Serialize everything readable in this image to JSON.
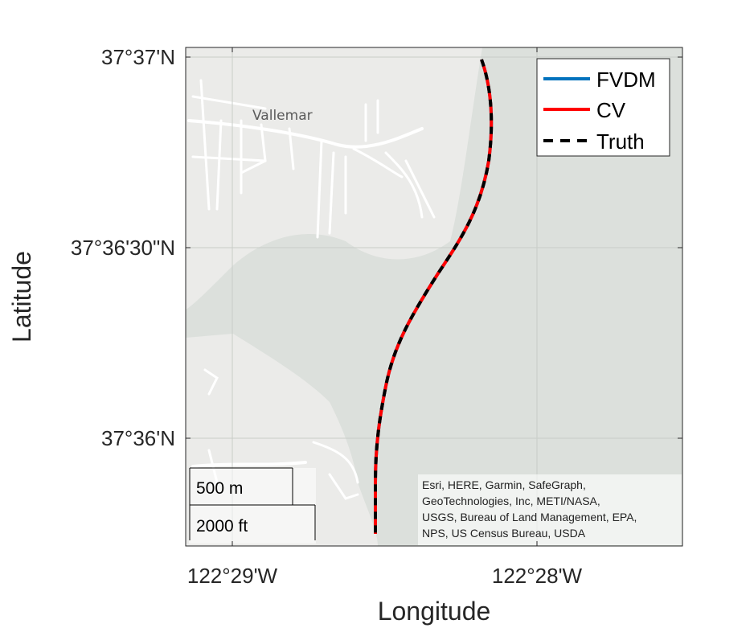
{
  "axes": {
    "xlabel": "Longitude",
    "ylabel": "Latitude",
    "x_ticks": [
      "122°29'W",
      "122°28'W"
    ],
    "y_ticks": [
      "37°37'N",
      "37°36'30\"N",
      "37°36'N"
    ]
  },
  "basemap": {
    "place_label": "Vallemar",
    "land_color": "#ebebe9",
    "water_color": "#dce0dc",
    "road_color": "#ffffff"
  },
  "legend": {
    "placement": "top-right",
    "items": [
      {
        "label": "FVDM",
        "color": "#0072bd",
        "style": "solid"
      },
      {
        "label": "CV",
        "color": "#ff0000",
        "style": "solid"
      },
      {
        "label": "Truth",
        "color": "#000000",
        "style": "dashed"
      }
    ]
  },
  "scalebar": {
    "metric_label": "500 m",
    "imperial_label": "2000 ft"
  },
  "attribution": [
    "Esri, HERE, Garmin, SafeGraph,",
    "GeoTechnologies, Inc, METI/NASA,",
    "USGS, Bureau of Land Management, EPA,",
    "NPS, US Census Bureau, USDA"
  ]
}
